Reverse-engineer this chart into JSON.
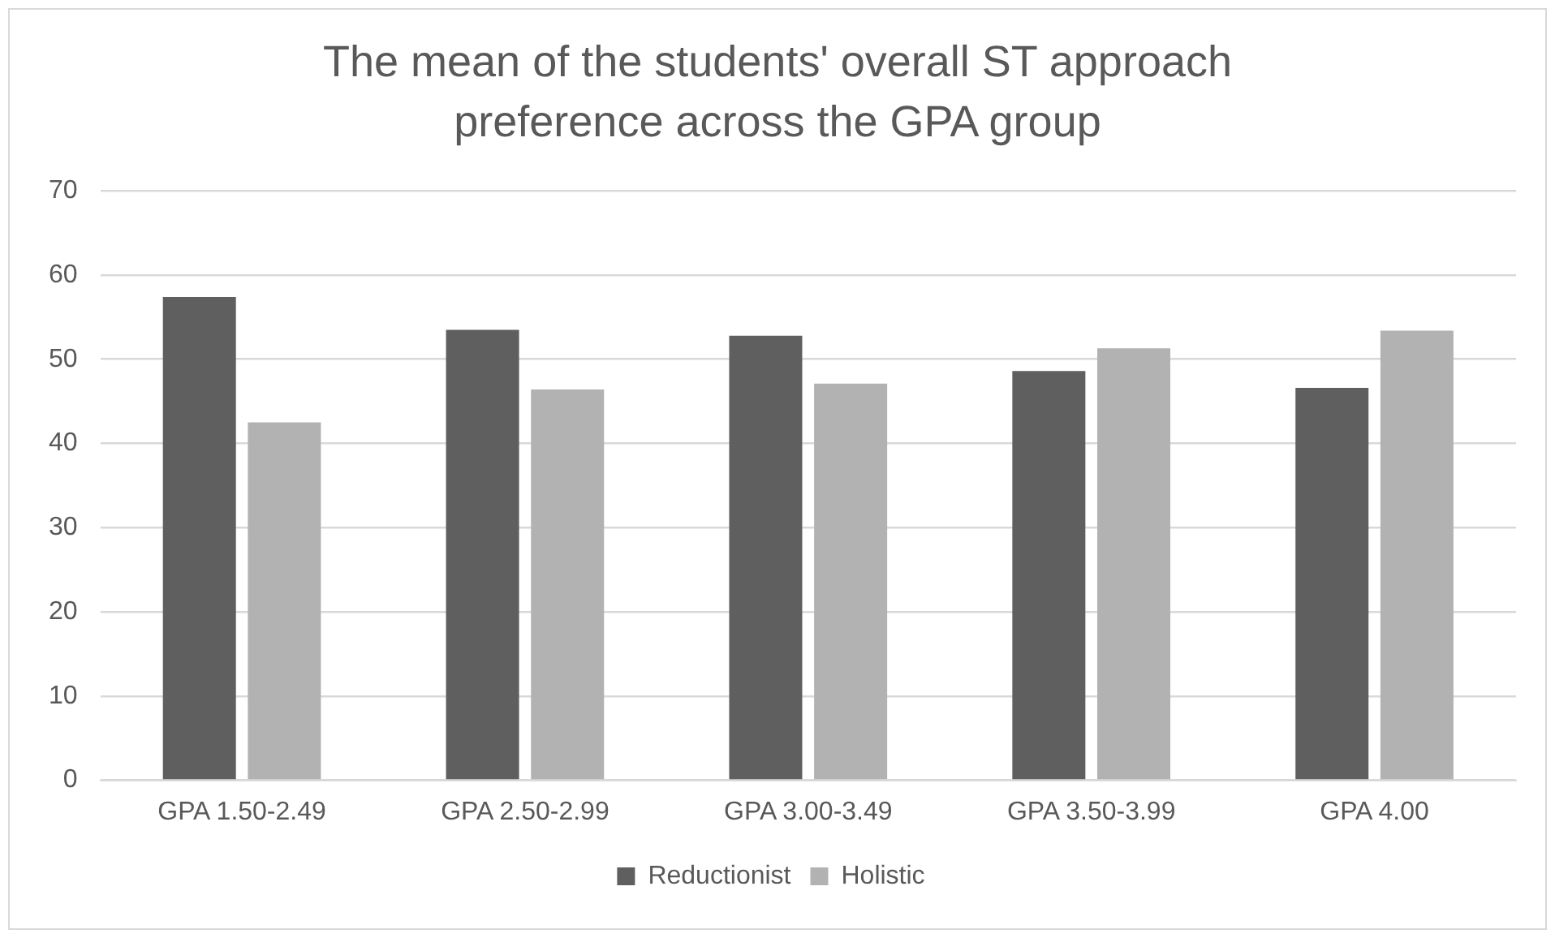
{
  "chart_data": {
    "type": "bar",
    "title": "The mean of the students' overall ST approach preference across the GPA group",
    "categories": [
      "GPA 1.50-2.49",
      "GPA 2.50-2.99",
      "GPA 3.00-3.49",
      "GPA 3.50-3.99",
      "GPA 4.00"
    ],
    "series": [
      {
        "name": "Reductionist",
        "color": "#5f5f5f",
        "values": [
          57.4,
          53.5,
          52.8,
          48.6,
          46.6
        ]
      },
      {
        "name": "Holistic",
        "color": "#b2b2b2",
        "values": [
          42.5,
          46.4,
          47.1,
          51.3,
          53.4
        ]
      }
    ],
    "ylim": [
      0,
      70
    ],
    "yticks": [
      0,
      10,
      20,
      30,
      40,
      50,
      60,
      70
    ],
    "grid": "y",
    "legend": "bottom"
  }
}
